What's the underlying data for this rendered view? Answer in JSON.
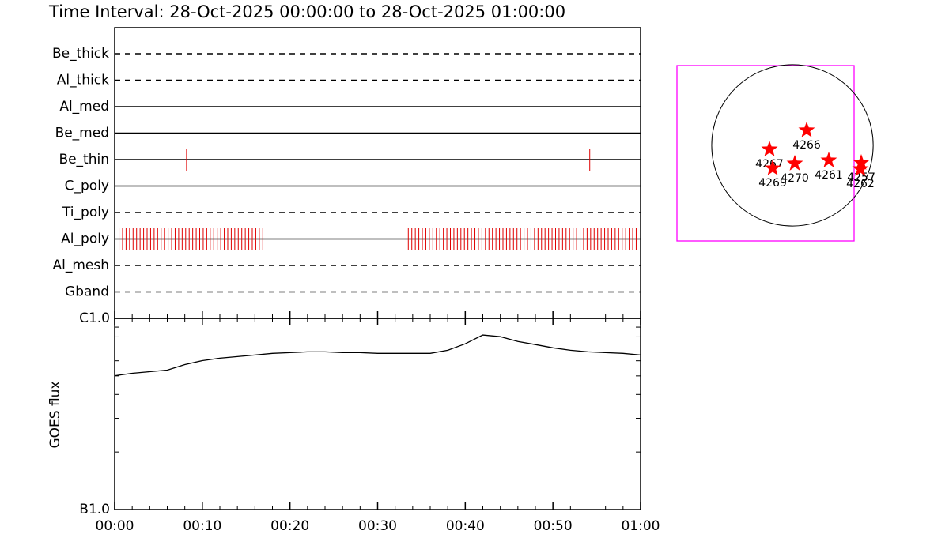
{
  "chart_data": [
    {
      "type": "timeline",
      "title": "Time Interval: 28-Oct-2025 00:00:00 to 28-Oct-2025 01:00:00",
      "categories": [
        "Be_thick",
        "Al_thick",
        "Al_med",
        "Be_med",
        "Be_thin",
        "C_poly",
        "Ti_poly",
        "Al_poly",
        "Al_mesh",
        "Gband"
      ],
      "styles": [
        "dashed",
        "dashed",
        "solid",
        "solid",
        "solid",
        "solid",
        "dashed",
        "solid",
        "dashed",
        "dashed"
      ],
      "events": [
        [],
        [],
        [],
        [],
        [
          8.2,
          54.2
        ],
        [],
        [],
        [
          0.5,
          0.9,
          1.3,
          1.7,
          2.1,
          2.5,
          2.9,
          3.3,
          3.7,
          4.1,
          4.5,
          4.9,
          5.3,
          5.7,
          6.1,
          6.5,
          6.9,
          7.3,
          7.7,
          8.1,
          8.5,
          8.9,
          9.3,
          9.7,
          10.1,
          10.5,
          10.9,
          11.3,
          11.7,
          12.1,
          12.5,
          12.9,
          13.3,
          13.7,
          14.1,
          14.5,
          14.9,
          15.3,
          15.7,
          16.1,
          16.5,
          16.9,
          33.5,
          33.9,
          34.3,
          34.7,
          35.1,
          35.5,
          35.9,
          36.3,
          36.7,
          37.1,
          37.5,
          37.9,
          38.3,
          38.7,
          39.1,
          39.5,
          39.9,
          40.3,
          40.7,
          41.1,
          41.5,
          41.9,
          42.3,
          42.7,
          43.1,
          43.5,
          43.9,
          44.3,
          44.7,
          45.1,
          45.5,
          45.9,
          46.3,
          46.7,
          47.1,
          47.5,
          47.9,
          48.3,
          48.7,
          49.1,
          49.5,
          49.9,
          50.3,
          50.7,
          51.1,
          51.5,
          51.9,
          52.3,
          52.7,
          53.1,
          53.5,
          53.9,
          54.3,
          54.7,
          55.1,
          55.5,
          55.9,
          56.3,
          56.7,
          57.1,
          57.5,
          57.9,
          58.3,
          58.7,
          59.1,
          59.5
        ],
        [],
        []
      ],
      "event_color": "#e00000",
      "xlim": [
        0,
        60
      ]
    },
    {
      "type": "line",
      "ylabel": "GOES flux",
      "x": [
        0,
        2,
        4,
        6,
        8,
        10,
        12,
        14,
        16,
        18,
        20,
        22,
        24,
        26,
        28,
        30,
        32,
        34,
        36,
        38,
        40,
        42,
        44,
        46,
        48,
        50,
        52,
        54,
        56,
        58,
        60
      ],
      "values": [
        5.01e-07,
        5.16e-07,
        5.26e-07,
        5.36e-07,
        5.73e-07,
        6.01e-07,
        6.19e-07,
        6.31e-07,
        6.43e-07,
        6.56e-07,
        6.62e-07,
        6.68e-07,
        6.68e-07,
        6.62e-07,
        6.62e-07,
        6.56e-07,
        6.56e-07,
        6.56e-07,
        6.56e-07,
        6.81e-07,
        7.36e-07,
        8.18e-07,
        8.02e-07,
        7.57e-07,
        7.29e-07,
        7.01e-07,
        6.81e-07,
        6.68e-07,
        6.62e-07,
        6.56e-07,
        6.43e-07
      ],
      "color": "#000000",
      "log_y": true,
      "xlim": [
        0,
        60
      ],
      "xticks": [
        {
          "value": 0,
          "label": "00:00"
        },
        {
          "value": 10,
          "label": "00:10"
        },
        {
          "value": 20,
          "label": "00:20"
        },
        {
          "value": 30,
          "label": "00:30"
        },
        {
          "value": 40,
          "label": "00:40"
        },
        {
          "value": 50,
          "label": "00:50"
        },
        {
          "value": 60,
          "label": "01:00"
        }
      ],
      "xminorticks": [
        2,
        4,
        6,
        8,
        12,
        14,
        16,
        18,
        22,
        24,
        26,
        28,
        32,
        34,
        36,
        38,
        42,
        44,
        46,
        48,
        52,
        54,
        56,
        58
      ],
      "ylim": [
        1e-07,
        1e-06
      ],
      "yticks": [
        {
          "value": 1e-07,
          "label": "B1.0"
        },
        {
          "value": 1e-06,
          "label": "C1.0"
        }
      ],
      "yminorticks": [
        2e-07,
        3e-07,
        4e-07,
        5e-07,
        6e-07,
        7e-07,
        8e-07,
        9e-07
      ]
    },
    {
      "type": "scatter",
      "x": [
        169,
        -273,
        -235,
        28,
        432,
        818,
        808
      ],
      "y": [
        179,
        -47,
        -273,
        -216,
        -179,
        -207,
        -282
      ],
      "labels": [
        "4266",
        "4267",
        "4269",
        "4270",
        "4261",
        "4257",
        "4262"
      ],
      "color": "#ff0000",
      "frame_color": "#ff00ff",
      "disk_radius": 960,
      "xlim": [
        -1373,
        733
      ],
      "ylim": [
        -1137,
        949
      ]
    }
  ]
}
